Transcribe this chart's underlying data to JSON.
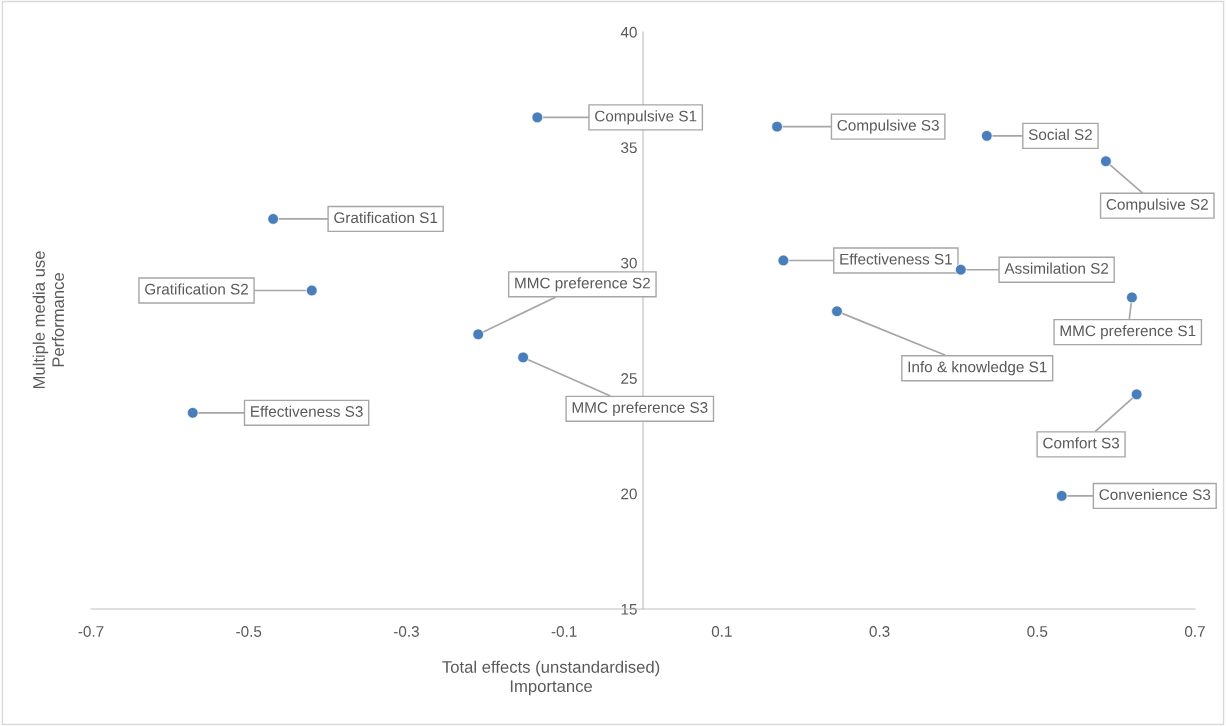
{
  "chart_data": {
    "type": "scatter",
    "xlabel": "Total effects (unstandardised)\nImportance",
    "ylabel": "Multiple media use\nPerformance",
    "x": [
      -0.134,
      0.17,
      0.436,
      0.587,
      -0.469,
      -0.42,
      0.178,
      0.403,
      0.62,
      0.246,
      -0.209,
      -0.152,
      -0.571,
      0.626,
      0.531
    ],
    "series": [
      {
        "color": "#4a7ebb",
        "values": [
          36.3,
          35.9,
          35.5,
          34.4,
          31.9,
          28.8,
          30.1,
          29.7,
          28.5,
          27.9,
          26.9,
          25.9,
          23.5,
          24.3,
          19.9
        ]
      }
    ],
    "annotations": [
      {
        "text": "Compulsive S1",
        "x": -0.134,
        "y": 36.3
      },
      {
        "text": "Compulsive S3",
        "x": 0.17,
        "y": 35.9
      },
      {
        "text": "Social S2",
        "x": 0.436,
        "y": 35.5
      },
      {
        "text": "Compulsive S2",
        "x": 0.587,
        "y": 34.4
      },
      {
        "text": "Gratification S1",
        "x": -0.469,
        "y": 31.9
      },
      {
        "text": "Gratification S2",
        "x": -0.42,
        "y": 28.8
      },
      {
        "text": "Effectiveness S1",
        "x": 0.178,
        "y": 30.1
      },
      {
        "text": "Assimilation S2",
        "x": 0.403,
        "y": 29.7
      },
      {
        "text": "MMC preference S1",
        "x": 0.62,
        "y": 28.5
      },
      {
        "text": "Info & knowledge S1",
        "x": 0.246,
        "y": 27.9
      },
      {
        "text": "MMC preference S2",
        "x": -0.209,
        "y": 26.9
      },
      {
        "text": "MMC preference S3",
        "x": -0.152,
        "y": 25.9
      },
      {
        "text": "Effectiveness S3",
        "x": -0.571,
        "y": 23.5
      },
      {
        "text": "Comfort S3",
        "x": 0.626,
        "y": 24.3
      },
      {
        "text": "Convenience S3",
        "x": 0.531,
        "y": 19.9
      }
    ],
    "xlim": [
      -0.7,
      0.7
    ],
    "xticks": [
      -0.7,
      -0.5,
      -0.3,
      -0.1,
      0.1,
      0.3,
      0.5,
      0.7
    ],
    "ylim": [
      15,
      40
    ],
    "yticks": [
      15,
      20,
      25,
      30,
      35,
      40
    ],
    "marker": "circle",
    "grid": false,
    "legend": false
  }
}
